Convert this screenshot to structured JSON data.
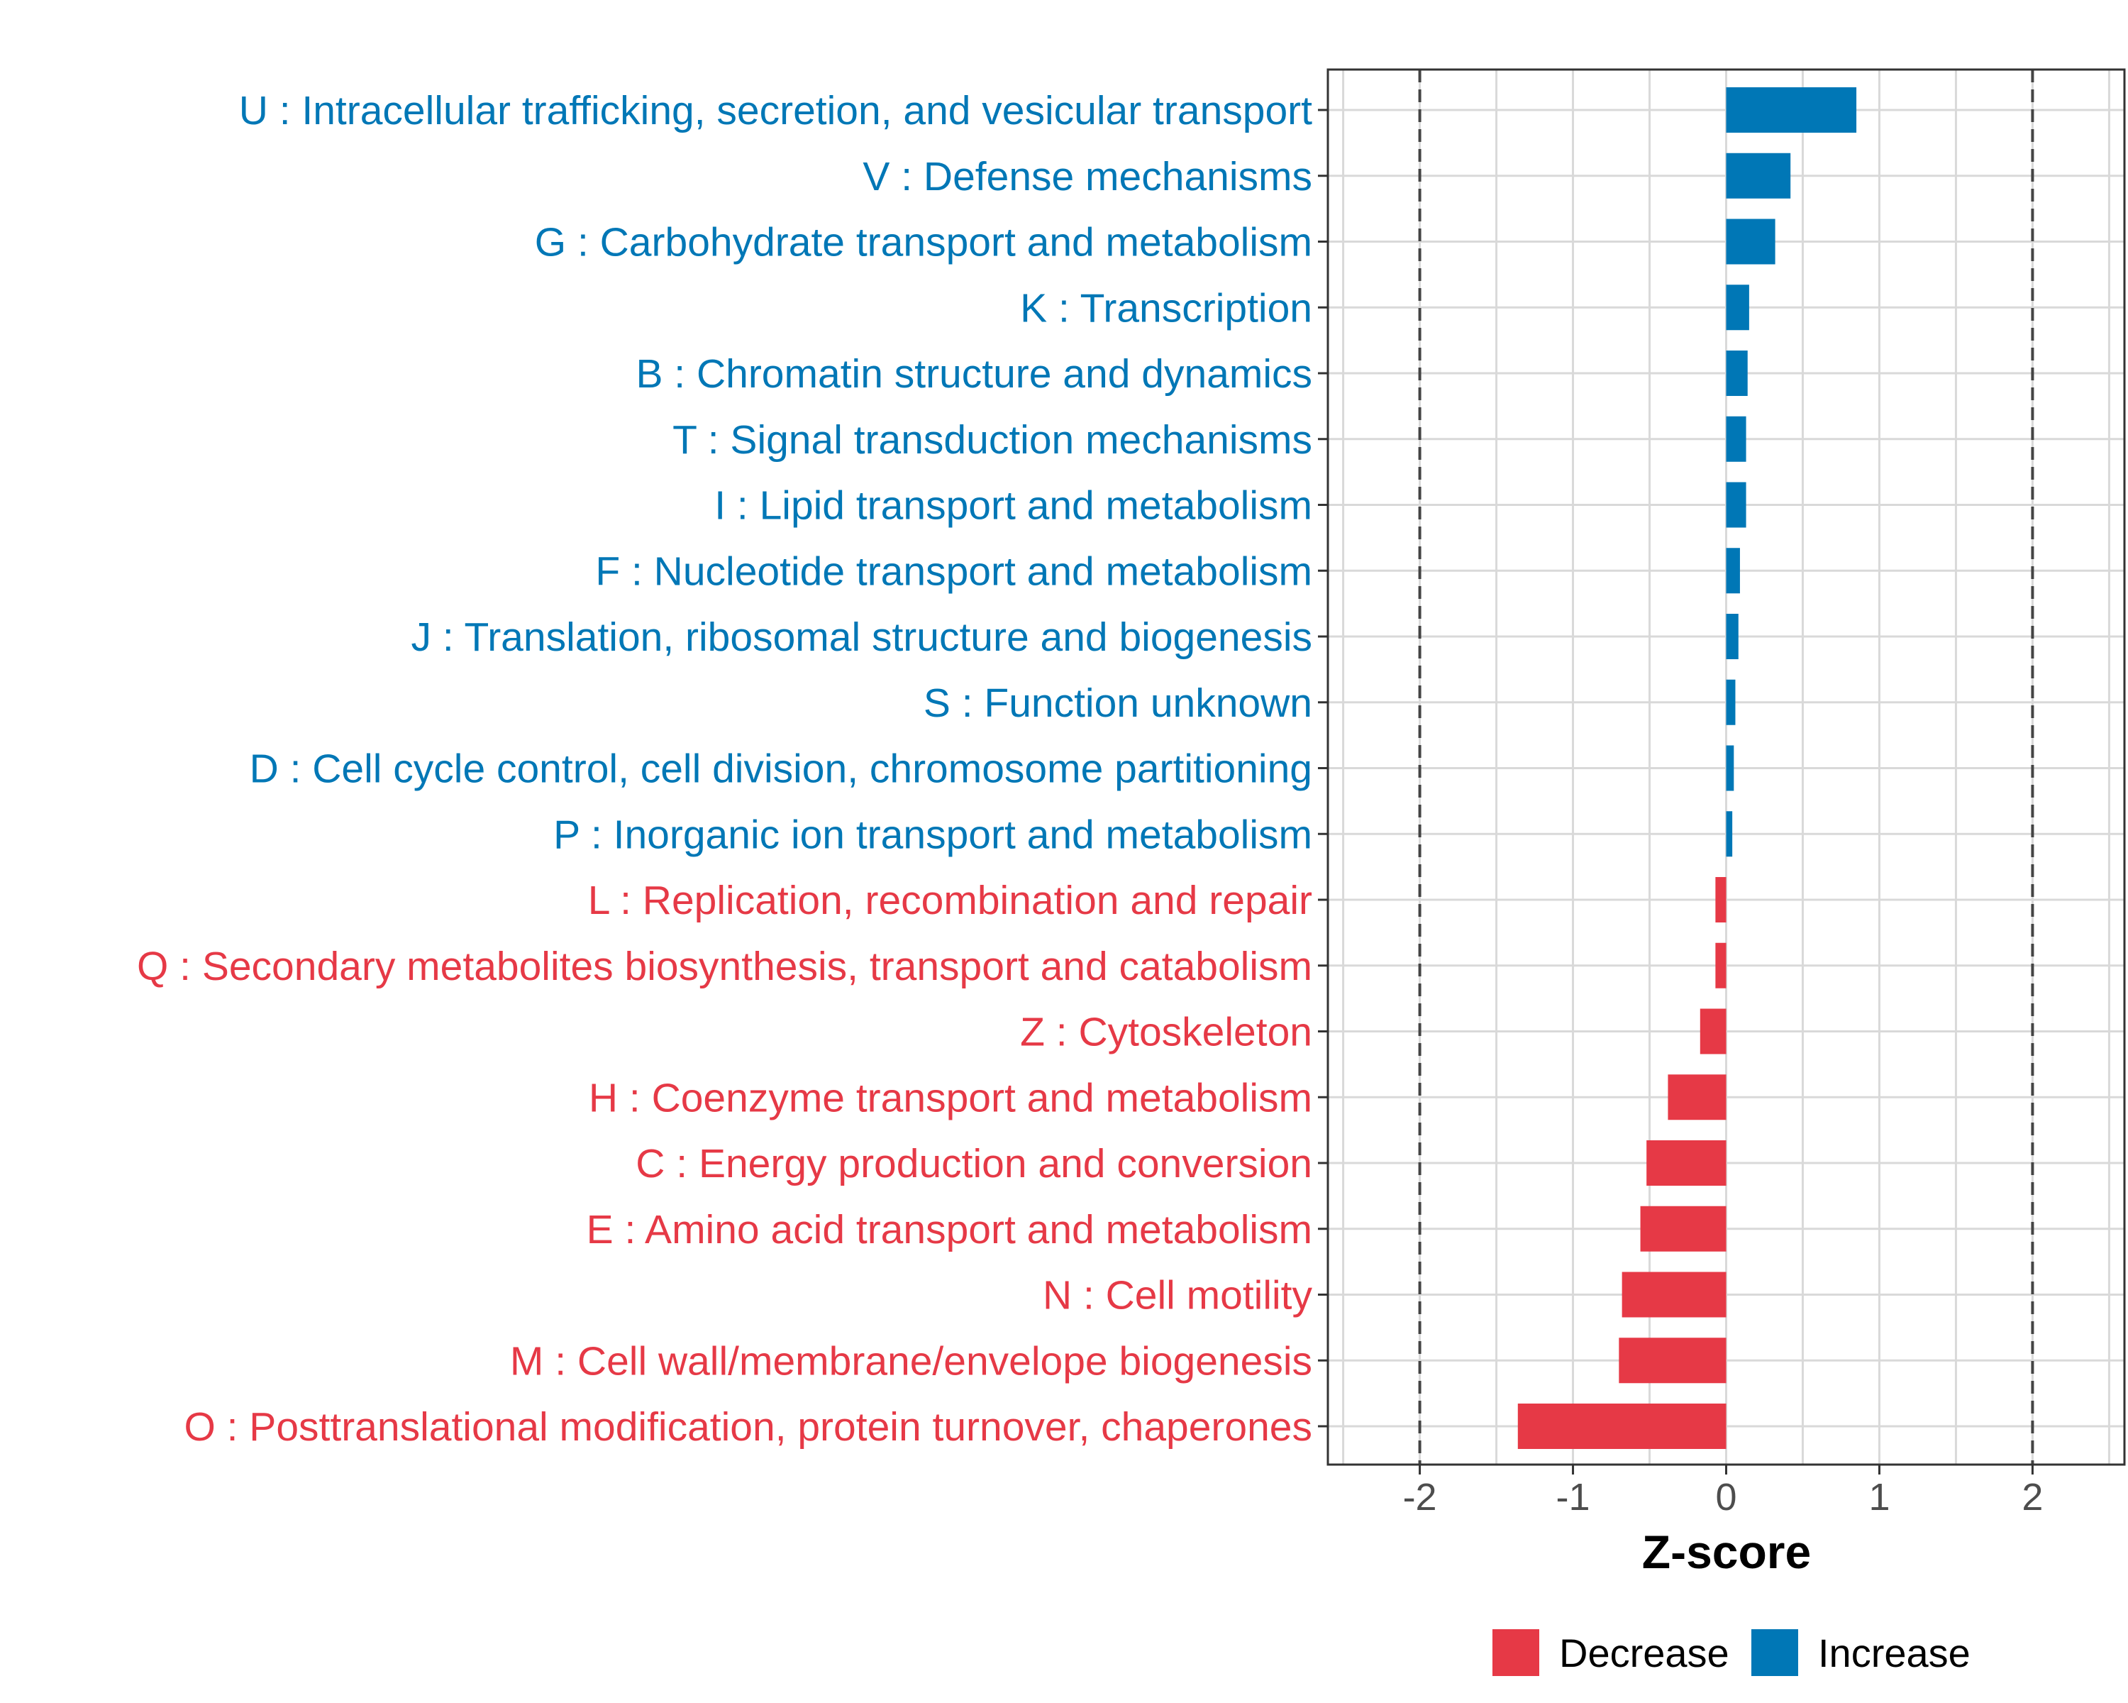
{
  "chart_data": {
    "type": "bar",
    "orientation": "horizontal",
    "title": "",
    "xlabel": "Z-score",
    "ylabel": "",
    "xlim": [
      -2.6,
      2.6
    ],
    "x_ticks": [
      -2,
      -1,
      0,
      1,
      2
    ],
    "x_tick_labels": [
      "-2",
      "-1",
      "0",
      "1",
      "2"
    ],
    "reference_lines": [
      -2,
      2
    ],
    "grid": true,
    "legend_position": "bottom",
    "legend": [
      {
        "name": "Decrease",
        "color": "#E63946"
      },
      {
        "name": "Increase",
        "color": "#0077B6"
      }
    ],
    "categories": [
      "U : Intracellular trafficking, secretion, and vesicular transport",
      "V : Defense mechanisms",
      "G : Carbohydrate transport and metabolism",
      "K : Transcription",
      "B : Chromatin structure and dynamics",
      "T : Signal transduction mechanisms",
      "I : Lipid transport and metabolism",
      "F : Nucleotide transport and metabolism",
      "J : Translation, ribosomal structure and biogenesis",
      "S : Function unknown",
      "D : Cell cycle control, cell division, chromosome partitioning",
      "P : Inorganic ion transport and metabolism",
      "L : Replication, recombination and repair",
      "Q : Secondary metabolites biosynthesis, transport and catabolism",
      "Z : Cytoskeleton",
      "H : Coenzyme transport and metabolism",
      "C : Energy production and conversion",
      "E : Amino acid transport and metabolism",
      "N : Cell motility",
      "M : Cell wall/membrane/envelope biogenesis",
      "O : Posttranslational modification, protein turnover, chaperones"
    ],
    "values": [
      0.85,
      0.42,
      0.32,
      0.15,
      0.14,
      0.13,
      0.13,
      0.09,
      0.08,
      0.06,
      0.05,
      0.04,
      -0.07,
      -0.07,
      -0.17,
      -0.38,
      -0.52,
      -0.56,
      -0.68,
      -0.7,
      -1.36
    ],
    "groups": [
      "Increase",
      "Increase",
      "Increase",
      "Increase",
      "Increase",
      "Increase",
      "Increase",
      "Increase",
      "Increase",
      "Increase",
      "Increase",
      "Increase",
      "Decrease",
      "Decrease",
      "Decrease",
      "Decrease",
      "Decrease",
      "Decrease",
      "Decrease",
      "Decrease",
      "Decrease"
    ]
  }
}
